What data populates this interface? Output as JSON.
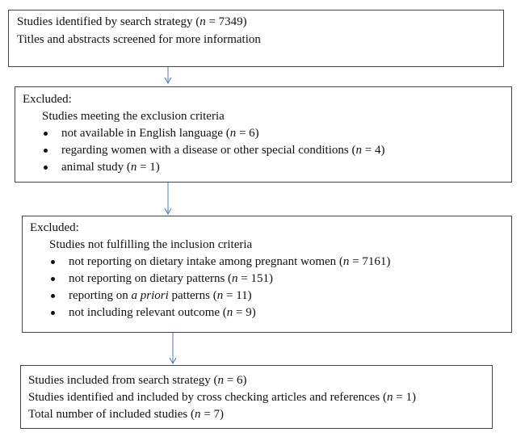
{
  "boxes": {
    "search": {
      "lines": [
        {
          "before": "Studies identified by search strategy (",
          "italic": "n",
          "after": " = 7349)"
        },
        {
          "before": "Titles and abstracts screened for more information",
          "italic": "",
          "after": ""
        }
      ]
    },
    "exclusion": {
      "heading": "Excluded:",
      "subheading": "Studies meeting the exclusion criteria",
      "items": [
        {
          "before": "not available in English language (",
          "italic": "n",
          "after": " = 6)"
        },
        {
          "before": "regarding women with a disease or other special conditions (",
          "italic": "n",
          "after": " = 4)"
        },
        {
          "before": "animal study (",
          "italic": "n",
          "after": " = 1)"
        }
      ]
    },
    "inclusion": {
      "heading": "Excluded:",
      "subheading": "Studies not fulfilling the inclusion criteria",
      "items": [
        {
          "before": "not reporting on dietary intake among pregnant women (",
          "italic": "n",
          "after": " = 7161)"
        },
        {
          "before": "not reporting on dietary patterns (",
          "italic": "n",
          "after": " = 151)"
        },
        {
          "before": "reporting on ",
          "italic": "a priori",
          "after": " patterns (",
          "italic2": "n",
          "after2": " = 11)"
        },
        {
          "before": "not including relevant outcome (",
          "italic": "n",
          "after": " = 9)"
        }
      ]
    },
    "included": {
      "lines": [
        {
          "before": "Studies included from search strategy (",
          "italic": "n",
          "after": " = 6)"
        },
        {
          "before": "Studies identified and included by cross checking articles and references (",
          "italic": "n",
          "after": " = 1)"
        },
        {
          "before": "Total number of included studies (",
          "italic": "n",
          "after": " = 7)"
        }
      ]
    }
  },
  "colors": {
    "arrow": "#4a7abf",
    "border": "#444444"
  }
}
